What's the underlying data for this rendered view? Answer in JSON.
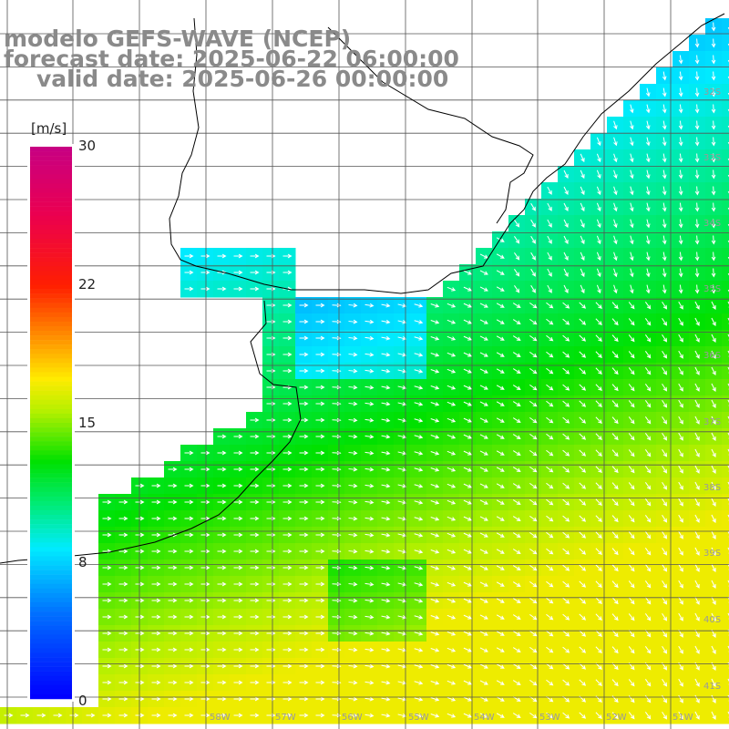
{
  "title": {
    "line1": "modelo GEFS-WAVE (NCEP)",
    "line2": "forecast date: 2025-06-22 06:00:00",
    "line3": "valid date: 2025-06-26 00:00:00"
  },
  "colorbar": {
    "unit": "[m/s]",
    "ticks": [
      "30",
      "22",
      "15",
      "8",
      "0"
    ],
    "min": 0,
    "max": 30
  },
  "lat_labels": [
    "32S",
    "33S",
    "34S",
    "35S",
    "36S",
    "37S",
    "38S",
    "39S",
    "40S",
    "41S"
  ],
  "lon_labels": [
    "58W",
    "57W",
    "56W",
    "55W",
    "54W",
    "53W",
    "52W",
    "51W"
  ],
  "colors": {
    "slow": "#1a55f0",
    "medium": "#00e8f0",
    "fast": "#00e000",
    "peak": "#c8f000",
    "arrows": "#ffffff",
    "grid": "#555555",
    "coast": "#000000",
    "title": "#8a8a8a"
  }
}
